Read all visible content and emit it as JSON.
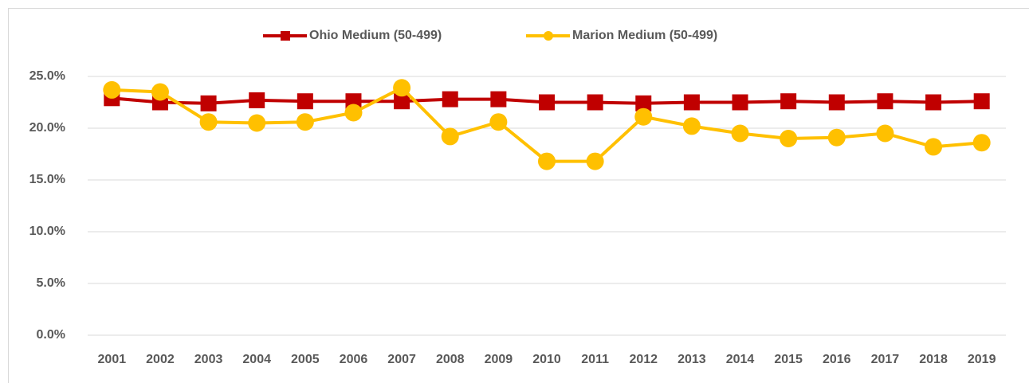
{
  "chart_data": {
    "type": "line",
    "categories": [
      "2001",
      "2002",
      "2003",
      "2004",
      "2005",
      "2006",
      "2007",
      "2008",
      "2009",
      "2010",
      "2011",
      "2012",
      "2013",
      "2014",
      "2015",
      "2016",
      "2017",
      "2018",
      "2019"
    ],
    "series": [
      {
        "name": "Ohio Medium (50-499)",
        "color": "#c00000",
        "marker": "square",
        "values": [
          22.9,
          22.5,
          22.4,
          22.7,
          22.6,
          22.6,
          22.6,
          22.8,
          22.8,
          22.5,
          22.5,
          22.4,
          22.5,
          22.5,
          22.6,
          22.5,
          22.6,
          22.5,
          22.6
        ]
      },
      {
        "name": "Marion  Medium (50-499)",
        "color": "#ffc000",
        "marker": "circle",
        "values": [
          23.7,
          23.5,
          20.6,
          20.5,
          20.6,
          21.5,
          23.9,
          19.2,
          20.6,
          16.8,
          16.8,
          21.1,
          20.2,
          19.5,
          19.0,
          19.1,
          19.5,
          18.2,
          18.6
        ]
      }
    ],
    "ylim": [
      0,
      25
    ],
    "yticks": [
      {
        "value": 0,
        "label": "0.0%"
      },
      {
        "value": 5,
        "label": "5.0%"
      },
      {
        "value": 10,
        "label": "10.0%"
      },
      {
        "value": 15,
        "label": "15.0%"
      },
      {
        "value": 20,
        "label": "20.0%"
      },
      {
        "value": 25,
        "label": "25.0%"
      }
    ],
    "grid": true,
    "legend": "top"
  }
}
